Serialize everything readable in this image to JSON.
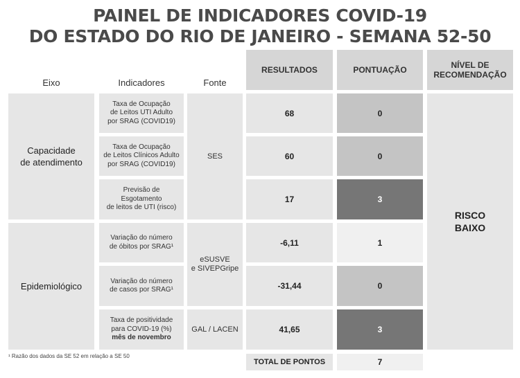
{
  "title": {
    "line1": "PAINEL DE INDICADORES COVID-19",
    "line2": "DO ESTADO DO RIO DE JANEIRO - SEMANA 52-50"
  },
  "headers": {
    "eixo": "Eixo",
    "indicadores": "Indicadores",
    "fonte": "Fonte",
    "resultados": "RESULTADOS",
    "pontuacao": "PONTUAÇÃO",
    "nivel_line1": "NÍVEL DE",
    "nivel_line2": "RECOMENDAÇÃO"
  },
  "axes": {
    "capacidade_line1": "Capacidade",
    "capacidade_line2": "de atendimento",
    "epidemiologico": "Epidemiológico"
  },
  "rows": [
    {
      "indicator_lines": [
        "Taxa de Ocupação",
        "de Leitos UTI Adulto",
        "por SRAG (COVID19)"
      ],
      "resultado": "68",
      "pontuacao": "0"
    },
    {
      "indicator_lines": [
        "Taxa de Ocupação",
        "de Leitos Clínicos Adulto",
        "por SRAG (COVID19)"
      ],
      "resultado": "60",
      "pontuacao": "0"
    },
    {
      "indicator_lines": [
        "Previsão de Esgotamento",
        "de leitos de UTI (risco)"
      ],
      "resultado": "17",
      "pontuacao": "3"
    },
    {
      "indicator_lines": [
        "Variação do número",
        "de óbitos por SRAG¹"
      ],
      "resultado": "-6,11",
      "pontuacao": "1"
    },
    {
      "indicator_lines": [
        "Variação do número",
        "de casos por SRAG¹"
      ],
      "resultado": "-31,44",
      "pontuacao": "0"
    },
    {
      "indicator_lines": [
        "Taxa de positividade",
        "para COVID-19 (%)"
      ],
      "indicator_bold": "mês de novembro",
      "resultado": "41,65",
      "pontuacao": "3"
    }
  ],
  "fontes": {
    "ses": "SES",
    "esusve_line1": "eSUSVE",
    "esusve_line2": "e SIVEPGripe",
    "gal": "GAL / LACEN"
  },
  "nivel": {
    "line1": "RISCO",
    "line2": "BAIXO"
  },
  "footnote": "¹ Razão dos dados da SE 52 em relação a SE 50",
  "total": {
    "label": "TOTAL DE PONTOS",
    "value": "7"
  },
  "colors": {
    "score_0": "#c4c4c4",
    "score_1": "#f0f0f0",
    "score_3": "#767676",
    "light_cell": "#e6e6e6",
    "header_box": "#d6d6d6"
  }
}
